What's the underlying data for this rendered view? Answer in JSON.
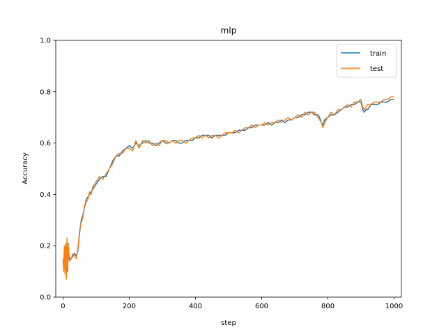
{
  "chart_data": {
    "type": "line",
    "title": "mlp",
    "xlabel": "step",
    "ylabel": "Accuracy",
    "xlim": [
      -22,
      1022
    ],
    "ylim": [
      0.0,
      1.0
    ],
    "xticks": [
      0,
      200,
      400,
      600,
      800,
      1000
    ],
    "yticks": [
      0.0,
      0.2,
      0.4,
      0.6,
      0.8,
      1.0
    ],
    "xtick_labels": [
      "0",
      "200",
      "400",
      "600",
      "800",
      "1000"
    ],
    "ytick_labels": [
      "0.0",
      "0.2",
      "0.4",
      "0.6",
      "0.8",
      "1.0"
    ],
    "legend_position": "upper right",
    "series": [
      {
        "name": "train",
        "color": "#1f77b4",
        "x": [
          0,
          2,
          4,
          6,
          8,
          10,
          12,
          14,
          16,
          18,
          20,
          25,
          30,
          35,
          40,
          45,
          50,
          55,
          60,
          65,
          70,
          75,
          80,
          85,
          90,
          100,
          110,
          120,
          130,
          140,
          150,
          160,
          170,
          180,
          190,
          200,
          210,
          220,
          230,
          240,
          250,
          260,
          270,
          280,
          290,
          300,
          310,
          320,
          330,
          340,
          350,
          360,
          370,
          380,
          390,
          400,
          410,
          420,
          430,
          440,
          450,
          460,
          470,
          480,
          490,
          500,
          510,
          520,
          530,
          540,
          550,
          560,
          570,
          580,
          590,
          600,
          610,
          620,
          630,
          640,
          650,
          660,
          670,
          680,
          690,
          700,
          710,
          720,
          730,
          740,
          750,
          760,
          770,
          775,
          780,
          785,
          790,
          800,
          810,
          820,
          830,
          840,
          850,
          860,
          870,
          880,
          890,
          900,
          905,
          910,
          915,
          920,
          930,
          940,
          950,
          960,
          970,
          980,
          990,
          1000
        ],
        "values": [
          0.14,
          0.12,
          0.18,
          0.1,
          0.2,
          0.13,
          0.22,
          0.1,
          0.2,
          0.16,
          0.15,
          0.15,
          0.16,
          0.17,
          0.16,
          0.18,
          0.25,
          0.3,
          0.32,
          0.35,
          0.38,
          0.39,
          0.4,
          0.41,
          0.42,
          0.44,
          0.46,
          0.47,
          0.47,
          0.5,
          0.53,
          0.55,
          0.55,
          0.57,
          0.58,
          0.59,
          0.58,
          0.6,
          0.59,
          0.6,
          0.61,
          0.6,
          0.6,
          0.59,
          0.6,
          0.61,
          0.6,
          0.6,
          0.61,
          0.61,
          0.6,
          0.6,
          0.61,
          0.61,
          0.61,
          0.62,
          0.62,
          0.63,
          0.63,
          0.63,
          0.62,
          0.63,
          0.63,
          0.63,
          0.63,
          0.64,
          0.64,
          0.64,
          0.65,
          0.65,
          0.65,
          0.66,
          0.66,
          0.67,
          0.67,
          0.67,
          0.67,
          0.68,
          0.67,
          0.68,
          0.68,
          0.69,
          0.68,
          0.69,
          0.69,
          0.7,
          0.7,
          0.71,
          0.71,
          0.72,
          0.72,
          0.71,
          0.71,
          0.7,
          0.68,
          0.67,
          0.69,
          0.7,
          0.71,
          0.71,
          0.72,
          0.73,
          0.74,
          0.74,
          0.75,
          0.75,
          0.76,
          0.76,
          0.73,
          0.72,
          0.73,
          0.73,
          0.75,
          0.75,
          0.75,
          0.76,
          0.76,
          0.76,
          0.77,
          0.77
        ]
      },
      {
        "name": "test",
        "color": "#ff7f0e",
        "x": [
          0,
          2,
          4,
          6,
          8,
          10,
          12,
          14,
          16,
          18,
          20,
          25,
          30,
          35,
          40,
          45,
          50,
          55,
          60,
          65,
          70,
          75,
          80,
          85,
          90,
          100,
          110,
          120,
          130,
          140,
          150,
          160,
          170,
          180,
          190,
          200,
          210,
          220,
          230,
          240,
          250,
          260,
          270,
          280,
          290,
          300,
          310,
          320,
          330,
          340,
          350,
          360,
          370,
          380,
          390,
          400,
          410,
          420,
          430,
          440,
          450,
          460,
          470,
          480,
          490,
          500,
          510,
          520,
          530,
          540,
          550,
          560,
          570,
          580,
          590,
          600,
          610,
          620,
          630,
          640,
          650,
          660,
          670,
          680,
          690,
          700,
          710,
          720,
          730,
          740,
          750,
          760,
          770,
          775,
          780,
          785,
          790,
          800,
          810,
          820,
          830,
          840,
          850,
          860,
          870,
          880,
          890,
          900,
          905,
          910,
          915,
          920,
          930,
          940,
          950,
          960,
          970,
          980,
          990,
          1000
        ],
        "values": [
          0.15,
          0.1,
          0.2,
          0.09,
          0.21,
          0.07,
          0.23,
          0.11,
          0.21,
          0.15,
          0.14,
          0.15,
          0.17,
          0.16,
          0.15,
          0.19,
          0.26,
          0.29,
          0.31,
          0.36,
          0.37,
          0.38,
          0.41,
          0.4,
          0.43,
          0.45,
          0.47,
          0.46,
          0.48,
          0.5,
          0.52,
          0.55,
          0.56,
          0.56,
          0.58,
          0.58,
          0.57,
          0.61,
          0.58,
          0.61,
          0.6,
          0.61,
          0.59,
          0.6,
          0.59,
          0.61,
          0.61,
          0.6,
          0.61,
          0.6,
          0.61,
          0.61,
          0.6,
          0.61,
          0.62,
          0.62,
          0.63,
          0.62,
          0.63,
          0.62,
          0.63,
          0.63,
          0.62,
          0.63,
          0.64,
          0.64,
          0.64,
          0.65,
          0.64,
          0.65,
          0.66,
          0.66,
          0.67,
          0.66,
          0.67,
          0.67,
          0.68,
          0.67,
          0.68,
          0.68,
          0.69,
          0.68,
          0.69,
          0.7,
          0.69,
          0.7,
          0.71,
          0.7,
          0.72,
          0.71,
          0.72,
          0.72,
          0.7,
          0.69,
          0.68,
          0.66,
          0.68,
          0.7,
          0.72,
          0.71,
          0.73,
          0.73,
          0.74,
          0.75,
          0.74,
          0.76,
          0.76,
          0.77,
          0.74,
          0.73,
          0.74,
          0.75,
          0.75,
          0.76,
          0.76,
          0.76,
          0.77,
          0.77,
          0.78,
          0.78
        ]
      }
    ]
  }
}
